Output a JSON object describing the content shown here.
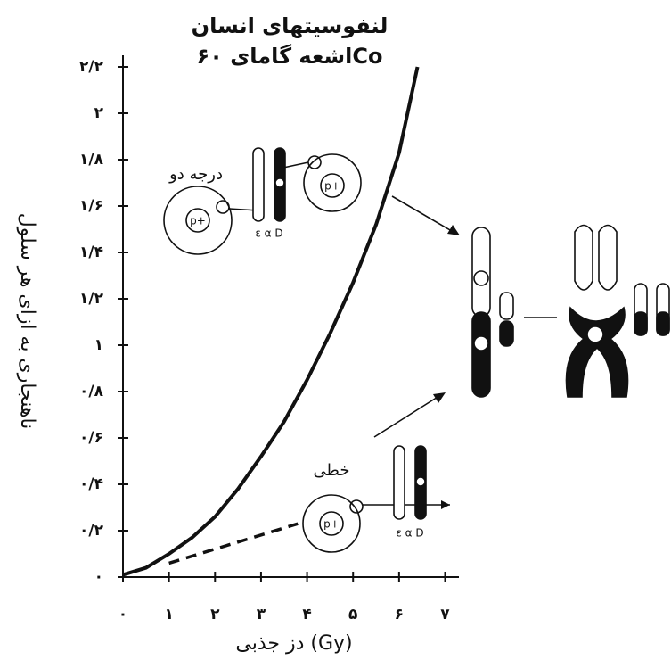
{
  "chart_data": {
    "type": "line",
    "title": "لنفوسیتهای انسان",
    "subtitle": "اشعه گامای ۶۰Co",
    "x_label": "دز جذبی (Gy)",
    "y_label": "ناهنجاری به ازای هر سلول",
    "xlim": [
      0,
      7.3
    ],
    "ylim": [
      0,
      2.25
    ],
    "xticks": [
      {
        "value": 0,
        "label": "۰"
      },
      {
        "value": 1,
        "label": "۱"
      },
      {
        "value": 2,
        "label": "۲"
      },
      {
        "value": 3,
        "label": "۳"
      },
      {
        "value": 4,
        "label": "۴"
      },
      {
        "value": 5,
        "label": "۵"
      },
      {
        "value": 6,
        "label": "۶"
      },
      {
        "value": 7,
        "label": "۷"
      }
    ],
    "yticks": [
      {
        "value": 0,
        "label": "۰"
      },
      {
        "value": 0.2,
        "label": "۰/۲"
      },
      {
        "value": 0.4,
        "label": "۰/۴"
      },
      {
        "value": 0.6,
        "label": "۰/۶"
      },
      {
        "value": 0.8,
        "label": "۰/۸"
      },
      {
        "value": 1,
        "label": "۱"
      },
      {
        "value": 1.2,
        "label": "۱/۲"
      },
      {
        "value": 1.4,
        "label": "۱/۴"
      },
      {
        "value": 1.6,
        "label": "۱/۶"
      },
      {
        "value": 1.8,
        "label": "۱/۸"
      },
      {
        "value": 2,
        "label": "۲"
      },
      {
        "value": 2.2,
        "label": "۲/۲"
      }
    ],
    "series": [
      {
        "x": [
          0,
          0.5,
          1,
          1.5,
          2,
          2.5,
          3,
          3.5,
          4,
          4.5,
          5,
          5.5,
          6,
          6.4
        ],
        "values": [
          0.01,
          0.04,
          0.1,
          0.17,
          0.26,
          0.38,
          0.52,
          0.67,
          0.85,
          1.05,
          1.27,
          1.52,
          1.83,
          2.2
        ],
        "color": "#111111",
        "dashed": false
      },
      {
        "x": [
          1,
          3.8
        ],
        "values": [
          0.06,
          0.23
        ],
        "color": "#111111",
        "dashed": true
      }
    ],
    "annotations": [
      "درجه دو",
      "خطی",
      "p+",
      "ε α D"
    ]
  }
}
